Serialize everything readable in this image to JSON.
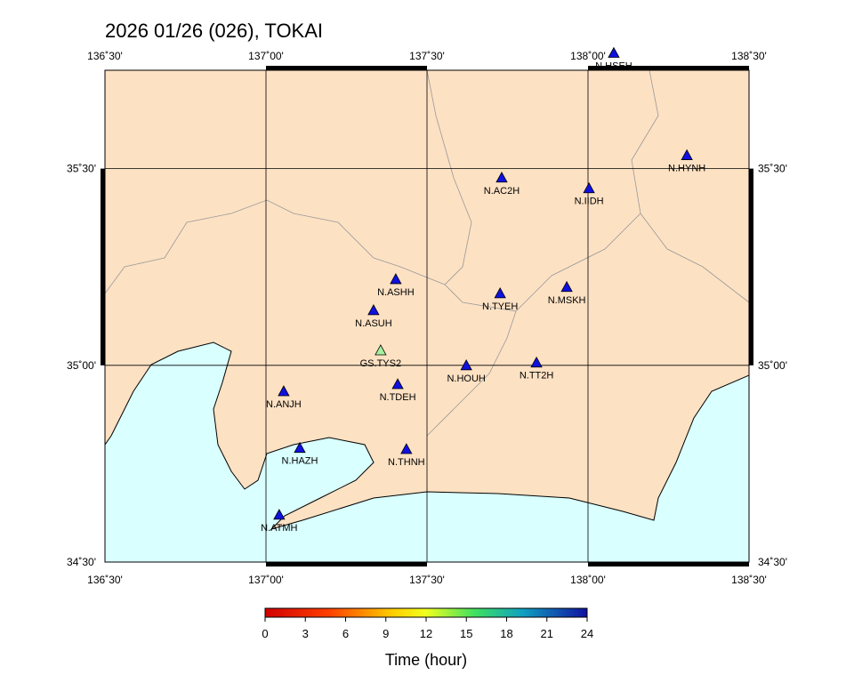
{
  "title": "2026 01/26 (026), TOKAI",
  "map": {
    "lonlim": [
      136.5,
      138.5
    ],
    "latlim": [
      34.5,
      35.75
    ],
    "lonticks": [
      {
        "value": 136.5,
        "label": "136˚30'"
      },
      {
        "value": 137,
        "label": "137˚00'"
      },
      {
        "value": 137.5,
        "label": "137˚30'"
      },
      {
        "value": 138,
        "label": "138˚00'"
      },
      {
        "value": 138.5,
        "label": "138˚30'"
      }
    ],
    "latticks": [
      {
        "value": 34.5,
        "label": "34˚30'"
      },
      {
        "value": 35,
        "label": "35˚00'"
      },
      {
        "value": 35.5,
        "label": "35˚30'"
      }
    ],
    "stations": [
      {
        "name": "N.HSEH",
        "lon": 138.08,
        "lat": 35.794,
        "color": "#1010e0"
      },
      {
        "name": "N.HYNH",
        "lon": 138.307,
        "lat": 35.534,
        "color": "#1010e0"
      },
      {
        "name": "N.AC2H",
        "lon": 137.732,
        "lat": 35.477,
        "color": "#1010e0"
      },
      {
        "name": "N.IIDH",
        "lon": 138.003,
        "lat": 35.45,
        "color": "#1010e0"
      },
      {
        "name": "N.ASHH",
        "lon": 137.403,
        "lat": 35.219,
        "color": "#1010e0"
      },
      {
        "name": "N.TYEH",
        "lon": 137.727,
        "lat": 35.183,
        "color": "#1010e0"
      },
      {
        "name": "N.MSKH",
        "lon": 137.934,
        "lat": 35.199,
        "color": "#1010e0"
      },
      {
        "name": "N.ASUH",
        "lon": 137.334,
        "lat": 35.14,
        "color": "#1010e0"
      },
      {
        "name": "GS.TYS2",
        "lon": 137.356,
        "lat": 35.038,
        "color": "#a8f0a0"
      },
      {
        "name": "N.HOUH",
        "lon": 137.622,
        "lat": 35.0,
        "color": "#1010e0"
      },
      {
        "name": "N.TT2H",
        "lon": 137.84,
        "lat": 35.007,
        "color": "#1010e0"
      },
      {
        "name": "N.TDEH",
        "lon": 137.409,
        "lat": 34.952,
        "color": "#1010e0"
      },
      {
        "name": "N.ANJH",
        "lon": 137.055,
        "lat": 34.934,
        "color": "#1010e0"
      },
      {
        "name": "N.HAZH",
        "lon": 137.105,
        "lat": 34.79,
        "color": "#1010e0"
      },
      {
        "name": "N.THNH",
        "lon": 137.436,
        "lat": 34.787,
        "color": "#1010e0"
      },
      {
        "name": "N.ATMH",
        "lon": 137.041,
        "lat": 34.62,
        "color": "#1010e0"
      }
    ]
  },
  "colorbar": {
    "label": "Time (hour)",
    "lim": [
      0,
      24
    ],
    "ticks": [
      0,
      3,
      6,
      9,
      12,
      15,
      18,
      21,
      24
    ]
  }
}
